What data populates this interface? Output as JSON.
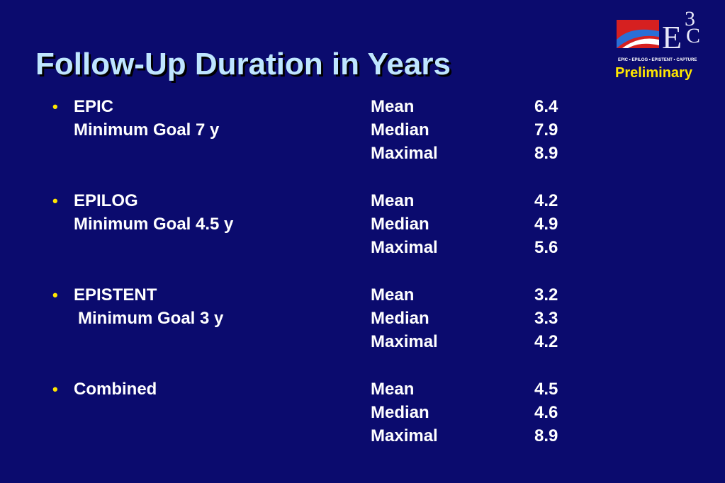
{
  "title": "Follow-Up Duration in Years",
  "badge": "Preliminary",
  "logo": {
    "letters": "E",
    "superscript": "3",
    "subscript": "C",
    "tagline": "EPIC • EPILOG • EPISTENT • CAPTURE"
  },
  "bullet_glyph": "•",
  "trials": [
    {
      "name": "EPIC",
      "goal": "Minimum Goal 7 y",
      "stats": [
        {
          "label": "Mean",
          "value": "6.4"
        },
        {
          "label": "Median",
          "value": "7.9"
        },
        {
          "label": "Maximal",
          "value": "8.9"
        }
      ]
    },
    {
      "name": "EPILOG",
      "goal": "Minimum Goal 4.5 y",
      "stats": [
        {
          "label": "Mean",
          "value": "4.2"
        },
        {
          "label": "Median",
          "value": "4.9"
        },
        {
          "label": "Maximal",
          "value": "5.6"
        }
      ]
    },
    {
      "name": "EPISTENT",
      "goal": "Minimum Goal 3 y",
      "stats": [
        {
          "label": "Mean",
          "value": "3.2"
        },
        {
          "label": "Median",
          "value": "3.3"
        },
        {
          "label": "Maximal",
          "value": "4.2"
        }
      ]
    },
    {
      "name": "Combined",
      "goal": "",
      "stats": [
        {
          "label": "Mean",
          "value": "4.5"
        },
        {
          "label": "Median",
          "value": "4.6"
        },
        {
          "label": "Maximal",
          "value": "8.9"
        }
      ]
    }
  ]
}
